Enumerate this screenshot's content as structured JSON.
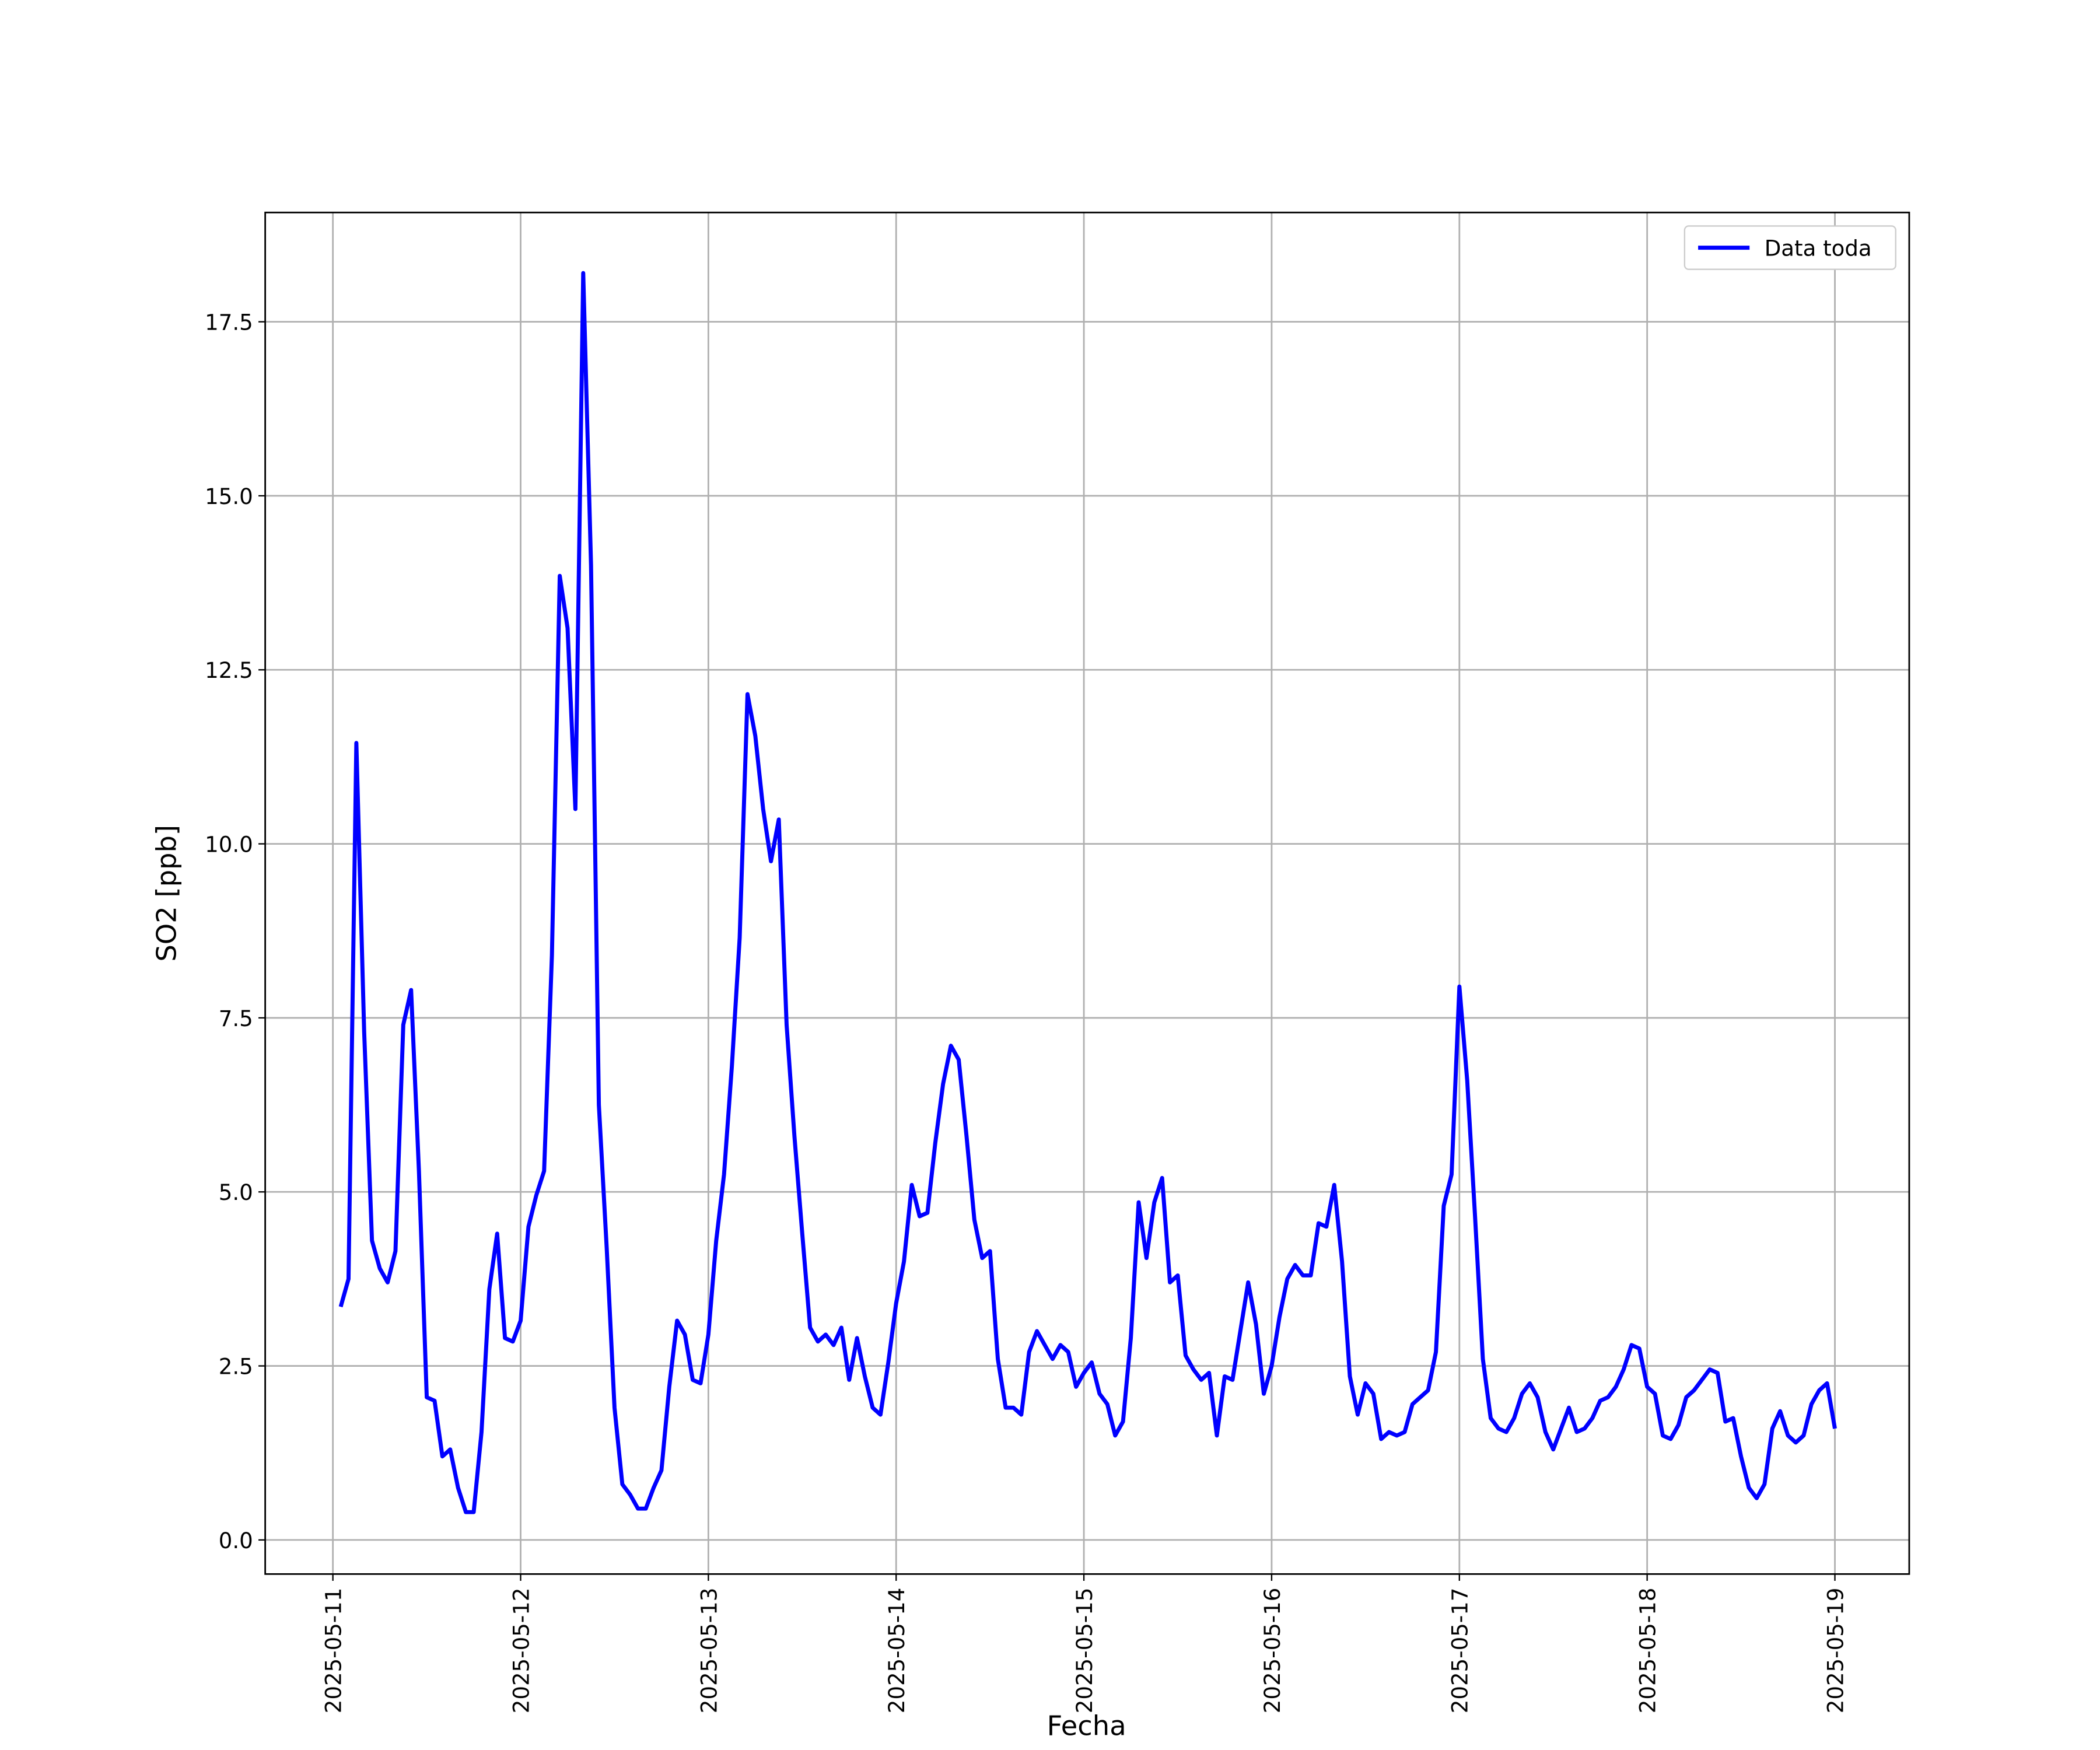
{
  "chart_data": {
    "type": "line",
    "xlabel": "Fecha",
    "ylabel": "SO2 [ppb]",
    "x": [
      1,
      2,
      3,
      4,
      5,
      6,
      7,
      8,
      9,
      10,
      11,
      12,
      13,
      14,
      15,
      16,
      17,
      18,
      19,
      20,
      21,
      22,
      23,
      24,
      25,
      26,
      27,
      28,
      29,
      30,
      31,
      32,
      33,
      34,
      35,
      36,
      37,
      38,
      39,
      40,
      41,
      42,
      43,
      44,
      45,
      46,
      47,
      48,
      49,
      50,
      51,
      52,
      53,
      54,
      55,
      56,
      57,
      58,
      59,
      60,
      61,
      62,
      63,
      64,
      65,
      66,
      67,
      68,
      69,
      70,
      71,
      72,
      73,
      74,
      75,
      76,
      77,
      78,
      79,
      80,
      81,
      82,
      83,
      84,
      85,
      86,
      87,
      88,
      89,
      90,
      91,
      92,
      93,
      94,
      95,
      96,
      97,
      98,
      99,
      100,
      101,
      102,
      103,
      104,
      105,
      106,
      107,
      108,
      109,
      110,
      111,
      112,
      113,
      114,
      115,
      116,
      117,
      118,
      119,
      120,
      121,
      122,
      123,
      124,
      125,
      126,
      127,
      128,
      129,
      130,
      131,
      132,
      133,
      134,
      135,
      136,
      137,
      138,
      139,
      140,
      141,
      142,
      143,
      144,
      145,
      146,
      147,
      148,
      149,
      150,
      151,
      152,
      153,
      154,
      155,
      156,
      157,
      158,
      159,
      160,
      161,
      162,
      163,
      164,
      165,
      166,
      167,
      168,
      169,
      170,
      171,
      172,
      173,
      174,
      175,
      176,
      177,
      178,
      179,
      180,
      181,
      182,
      183,
      184,
      185,
      186,
      187,
      188,
      189,
      190,
      191,
      192
    ],
    "series": [
      {
        "name": "Data toda",
        "color": "#0000ff",
        "values": [
          3.35,
          3.75,
          11.45,
          7.3,
          4.3,
          3.9,
          3.7,
          4.15,
          7.4,
          7.9,
          5.3,
          2.05,
          2.0,
          1.2,
          1.3,
          0.75,
          0.4,
          0.4,
          1.55,
          3.6,
          4.4,
          2.9,
          2.85,
          3.15,
          4.5,
          4.95,
          5.3,
          8.4,
          13.85,
          13.1,
          10.5,
          18.2,
          14.0,
          6.25,
          4.2,
          1.9,
          0.8,
          0.65,
          0.45,
          0.45,
          0.75,
          1.0,
          2.2,
          3.15,
          2.95,
          2.3,
          2.25,
          2.95,
          4.3,
          5.25,
          6.8,
          8.65,
          12.15,
          11.55,
          10.5,
          9.75,
          10.35,
          7.4,
          5.8,
          4.4,
          3.05,
          2.85,
          2.95,
          2.8,
          3.05,
          2.3,
          2.9,
          2.35,
          1.9,
          1.8,
          2.55,
          3.4,
          4.0,
          5.1,
          4.65,
          4.7,
          5.7,
          6.55,
          7.1,
          6.9,
          5.8,
          4.6,
          4.05,
          4.15,
          2.6,
          1.9,
          1.9,
          1.8,
          2.7,
          3.0,
          2.8,
          2.6,
          2.8,
          2.7,
          2.2,
          2.4,
          2.55,
          2.1,
          1.95,
          1.5,
          1.7,
          2.9,
          4.85,
          4.05,
          4.85,
          5.2,
          3.7,
          3.8,
          2.65,
          2.45,
          2.3,
          2.4,
          1.5,
          2.35,
          2.3,
          3.0,
          3.7,
          3.1,
          2.1,
          2.5,
          3.2,
          3.75,
          3.95,
          3.8,
          3.8,
          4.55,
          4.5,
          5.1,
          4.0,
          2.35,
          1.8,
          2.25,
          2.1,
          1.45,
          1.55,
          1.5,
          1.55,
          1.95,
          2.05,
          2.15,
          2.7,
          4.8,
          5.25,
          7.95,
          6.6,
          4.65,
          2.6,
          1.75,
          1.6,
          1.55,
          1.75,
          2.1,
          2.25,
          2.05,
          1.55,
          1.3,
          1.6,
          1.9,
          1.55,
          1.6,
          1.75,
          2.0,
          2.05,
          2.2,
          2.45,
          2.8,
          2.75,
          2.2,
          2.1,
          1.5,
          1.45,
          1.65,
          2.05,
          2.15,
          2.3,
          2.45,
          2.4,
          1.7,
          1.75,
          1.2,
          0.75,
          0.6,
          0.8,
          1.6,
          1.85,
          1.5,
          1.4,
          1.5,
          1.95,
          2.15,
          2.25,
          1.6
        ]
      }
    ],
    "xlim": [
      -8.65,
      201.5
    ],
    "xticks": [
      {
        "value": 0,
        "label": "2025-05-11"
      },
      {
        "value": 24,
        "label": "2025-05-12"
      },
      {
        "value": 48,
        "label": "2025-05-13"
      },
      {
        "value": 72,
        "label": "2025-05-14"
      },
      {
        "value": 96,
        "label": "2025-05-15"
      },
      {
        "value": 120,
        "label": "2025-05-16"
      },
      {
        "value": 144,
        "label": "2025-05-17"
      },
      {
        "value": 168,
        "label": "2025-05-18"
      },
      {
        "value": 192,
        "label": "2025-05-19"
      }
    ],
    "ylim": [
      -0.49,
      19.07
    ],
    "yticks": [
      {
        "value": 0,
        "label": "0.0"
      },
      2.5,
      {
        "value": 5,
        "label": "5.0"
      },
      7.5,
      {
        "value": 10,
        "label": "10.0"
      },
      12.5,
      {
        "value": 15,
        "label": "15.0"
      },
      17.5
    ],
    "grid": true,
    "legend": "upper right"
  }
}
